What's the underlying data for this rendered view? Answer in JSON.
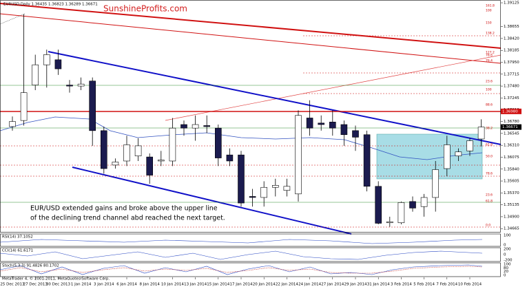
{
  "chart_data": {
    "type": "candlestick",
    "header": "EURUSD,Daily  1.36435 1.36823 1.36289 1.36671",
    "brand": [
      "Sunshine",
      "Profits.com"
    ],
    "annotation": [
      "EUR/USD extended gains and broke above the upper line",
      "of the declining trend channel abd reached the next target."
    ],
    "categories": [
      "25 Dec 2013",
      null,
      "27 Dec 2013",
      null,
      "30 Dec 2013",
      null,
      "1 Jan 2014",
      null,
      "3 Jan 2014",
      null,
      "6 Jan 2014",
      null,
      "8 Jan 2014",
      null,
      "10 Jan 2014",
      null,
      "13 Jan 2014",
      null,
      "15 Jan 2014",
      null,
      "17 Jan 2014",
      null,
      "20 Jan 2014",
      null,
      "22 Jan 2014",
      null,
      "24 Jan 2014",
      null,
      "27 Jan 2014",
      null,
      "29 Jan 2014",
      null,
      "31 Jan 2014",
      null,
      "3 Feb 2014",
      null,
      "5 Feb 2014",
      null,
      "7 Feb 2014",
      null,
      "10 Feb 2014",
      null
    ],
    "open": [
      1.3668,
      1.368,
      1.375,
      1.379,
      1.38,
      1.375,
      1.3748,
      1.3758,
      1.366,
      1.3592,
      1.36,
      1.361,
      1.3608,
      1.36,
      1.36,
      1.3672,
      1.3665,
      1.367,
      1.3665,
      1.3612,
      1.3612,
      1.353,
      1.3528,
      1.3548,
      1.3542,
      1.3535,
      1.3685,
      1.3675,
      1.3677,
      1.3672,
      1.366,
      1.3652,
      1.355,
      1.3478,
      1.3478,
      1.352,
      1.351,
      1.3528,
      1.3585,
      1.361,
      1.362,
      1.36435
    ],
    "high": [
      1.3688,
      1.389,
      1.381,
      1.382,
      1.382,
      1.376,
      1.3765,
      1.3765,
      1.3668,
      1.3605,
      1.365,
      1.3645,
      1.3615,
      1.362,
      1.3685,
      1.368,
      1.369,
      1.369,
      1.3672,
      1.3625,
      1.362,
      1.3545,
      1.356,
      1.3565,
      1.3565,
      1.37,
      1.372,
      1.369,
      1.37,
      1.368,
      1.367,
      1.366,
      1.356,
      1.349,
      1.352,
      1.353,
      1.3535,
      1.36,
      1.365,
      1.3625,
      1.3645,
      1.36823
    ],
    "low": [
      1.366,
      1.367,
      1.374,
      1.3745,
      1.377,
      1.3735,
      1.374,
      1.363,
      1.3575,
      1.3585,
      1.359,
      1.36,
      1.3555,
      1.359,
      1.359,
      1.365,
      1.364,
      1.3655,
      1.359,
      1.359,
      1.351,
      1.351,
      1.351,
      1.353,
      1.353,
      1.352,
      1.365,
      1.366,
      1.365,
      1.363,
      1.362,
      1.354,
      1.3475,
      1.347,
      1.3475,
      1.35,
      1.349,
      1.35,
      1.357,
      1.36,
      1.361,
      1.36289
    ],
    "close": [
      1.3678,
      1.3735,
      1.379,
      1.381,
      1.3782,
      1.3748,
      1.3752,
      1.366,
      1.3585,
      1.3598,
      1.3632,
      1.363,
      1.3572,
      1.3602,
      1.3665,
      1.3665,
      1.3672,
      1.3668,
      1.3606,
      1.36,
      1.3517,
      1.3528,
      1.3548,
      1.3552,
      1.355,
      1.369,
      1.3665,
      1.3672,
      1.3665,
      1.3652,
      1.3647,
      1.355,
      1.3477,
      1.348,
      1.3518,
      1.3507,
      1.3528,
      1.3583,
      1.3632,
      1.3618,
      1.364,
      1.36671
    ],
    "up_color": "#ffffff",
    "down_color": "#1b1b4f",
    "ylim": [
      1.346,
      1.3918
    ],
    "yticks": [
      1.39125,
      1.38655,
      {
        "value": 1.3842,
        "label": "1.38420"
      },
      1.38185,
      {
        "value": 1.3795,
        "label": "1.37950"
      },
      1.37715,
      {
        "value": 1.3748,
        "label": "1.37480"
      },
      1.37245,
      {
        "value": 1.3701,
        "label": "1.37010"
      },
      {
        "value": 1.3678,
        "label": "1.36780"
      },
      1.36545,
      {
        "value": 1.3631,
        "label": "1.36310"
      },
      1.36075,
      {
        "value": 1.3584,
        "label": "1.35840"
      },
      1.35605,
      {
        "value": 1.3537,
        "label": "1.35370"
      },
      1.35135,
      {
        "value": 1.349,
        "label": "1.34900"
      },
      1.34665
    ],
    "current_price": 1.36671,
    "level_price": {
      "value": 1.3698,
      "label": "1.36980"
    },
    "fib_labels": [
      "161.8",
      "100",
      "150",
      "138.2",
      "127.2",
      "78.6",
      "76.4",
      "23.6",
      "100",
      "88.6",
      "38.2",
      "50.0",
      "61.8",
      "78.6",
      "23.6",
      "61.8",
      "0.0"
    ],
    "indicators": [
      {
        "label": "RSI(14) 37.1052",
        "scale": [
          "100",
          "0"
        ]
      },
      {
        "label": "CCI(14) 61.6171",
        "scale": [
          "200",
          "0",
          "-200"
        ]
      },
      {
        "label": "Stoch(5,3,3) 91.4826 80.1702",
        "scale": [
          "100",
          "80",
          "20",
          "0"
        ]
      }
    ],
    "footer": "MetaTrader 4, © 2001-2011, MetaQuotes Software Corp."
  }
}
